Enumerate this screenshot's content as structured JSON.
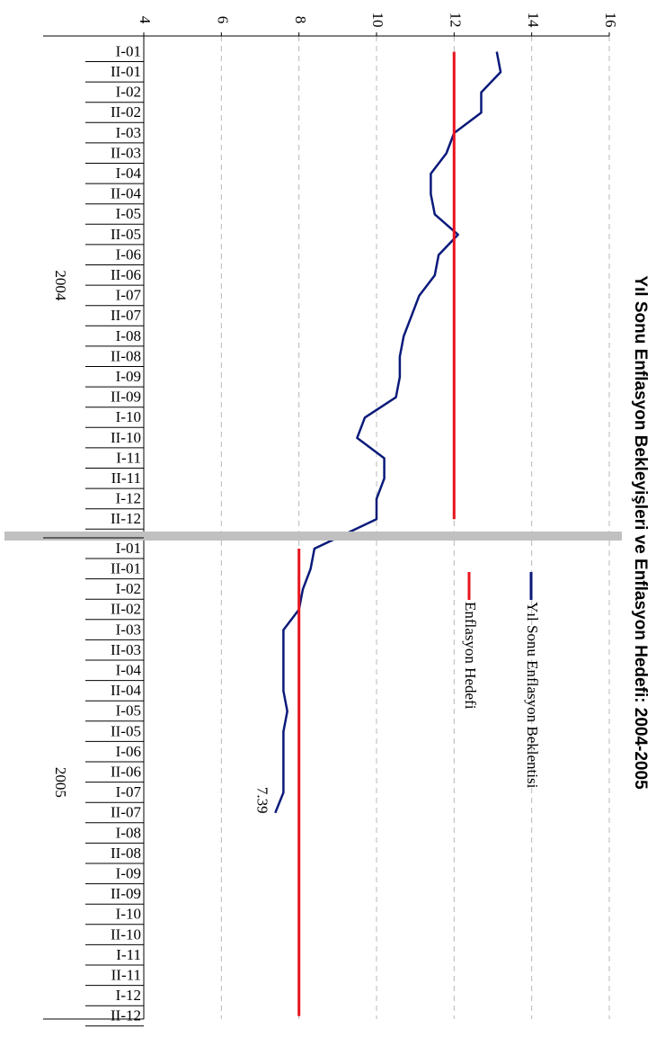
{
  "chart_data": {
    "type": "line",
    "orientation": "rotated-90-clockwise",
    "title": "Yıl Sonu Enflasyon Bekleyişleri ve Enflasyon Hedefi: 2004-2005",
    "xlabel": "",
    "ylabel": "",
    "ylim": [
      4,
      16
    ],
    "yticks": [
      "4",
      "6",
      "8",
      "10",
      "12",
      "14",
      "16"
    ],
    "grid": true,
    "legend_position": "right",
    "years": [
      "2004",
      "2005"
    ],
    "categories": [
      "I-01",
      "II-01",
      "I-02",
      "II-02",
      "I-03",
      "II-03",
      "I-04",
      "II-04",
      "I-05",
      "II-05",
      "I-06",
      "II-06",
      "I-07",
      "II-07",
      "I-08",
      "II-08",
      "I-09",
      "II-09",
      "I-10",
      "II-10",
      "I-11",
      "II-11",
      "I-12",
      "II-12",
      "I-01",
      "II-01",
      "I-02",
      "II-02",
      "I-03",
      "II-03",
      "I-04",
      "II-04",
      "I-05",
      "II-05",
      "I-06",
      "II-06",
      "I-07",
      "II-07",
      "I-08",
      "II-08",
      "I-09",
      "II-09",
      "I-10",
      "II-10",
      "I-11",
      "II-11",
      "I-12",
      "II-12"
    ],
    "series": [
      {
        "name": "Yıl Sonu Enflasyon Beklentisi",
        "color": "#0a1a7a",
        "values": [
          13.1,
          13.2,
          12.7,
          12.7,
          12.0,
          11.8,
          11.4,
          11.4,
          11.5,
          12.1,
          11.6,
          11.5,
          11.1,
          10.9,
          10.7,
          10.6,
          10.6,
          10.5,
          9.7,
          9.5,
          10.2,
          10.2,
          10.0,
          10.0,
          8.4,
          8.3,
          8.1,
          8.0,
          7.6,
          7.6,
          7.6,
          7.6,
          7.7,
          7.6,
          7.6,
          7.6,
          7.6,
          7.39,
          null,
          null,
          null,
          null,
          null,
          null,
          null,
          null,
          null,
          null
        ]
      },
      {
        "name": "Enflasyon Hedefi",
        "color": "#e8141e",
        "values": [
          12,
          12,
          12,
          12,
          12,
          12,
          12,
          12,
          12,
          12,
          12,
          12,
          12,
          12,
          12,
          12,
          12,
          12,
          12,
          12,
          12,
          12,
          12,
          12,
          8,
          8,
          8,
          8,
          8,
          8,
          8,
          8,
          8,
          8,
          8,
          8,
          8,
          8,
          8,
          8,
          8,
          8,
          8,
          8,
          8,
          8,
          8,
          8
        ]
      }
    ],
    "annotations": [
      {
        "text": "7.39",
        "series": 0,
        "index": 37
      }
    ],
    "separator_color": "#c0c0c0"
  }
}
